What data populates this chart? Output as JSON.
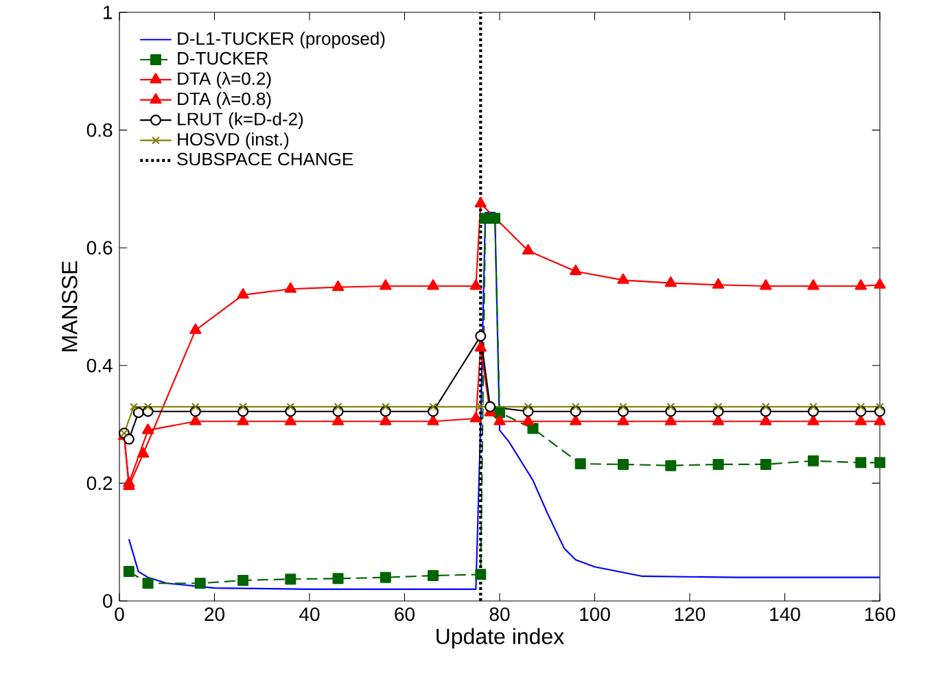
{
  "chart_data": {
    "type": "line",
    "xlabel": "Update index",
    "ylabel": "MANSSE",
    "xlim": [
      0,
      160
    ],
    "ylim": [
      0,
      1
    ],
    "xticks": [
      0,
      20,
      40,
      60,
      80,
      100,
      120,
      140,
      160
    ],
    "yticks": [
      0,
      {
        "value": 0.2,
        "label": "0.2"
      },
      {
        "value": 0.4,
        "label": "0.4"
      },
      {
        "value": 0.6,
        "label": "0.6"
      },
      {
        "value": 0.8,
        "label": "0.8"
      },
      1
    ],
    "legend": "top left",
    "grid": false,
    "series": [
      {
        "name": "D-L1-TUCKER (proposed)",
        "color": "#0000ff",
        "marker": "none",
        "line_style": "solid",
        "x": [
          2,
          4,
          6,
          10,
          20,
          40,
          60,
          75,
          76,
          77,
          79,
          80,
          82,
          87,
          90,
          93.6,
          96,
          100,
          110,
          130,
          160
        ],
        "values": [
          0.105,
          0.05,
          0.04,
          0.03,
          0.022,
          0.02,
          0.02,
          0.02,
          0.3,
          0.66,
          0.66,
          0.29,
          0.27,
          0.205,
          0.15,
          0.089,
          0.07,
          0.058,
          0.042,
          0.04,
          0.04
        ]
      },
      {
        "name": "D-TUCKER",
        "color": "#006400",
        "marker": "square",
        "line_style": "dashed",
        "x": [
          2,
          6,
          17,
          26,
          36,
          46,
          56,
          66,
          76,
          77,
          79,
          80,
          87,
          97,
          106,
          116,
          126,
          136,
          146,
          156,
          160
        ],
        "values": [
          0.05,
          0.03,
          0.03,
          0.035,
          0.037,
          0.038,
          0.04,
          0.043,
          0.045,
          0.65,
          0.65,
          0.32,
          0.293,
          0.233,
          0.232,
          0.23,
          0.232,
          0.232,
          0.238,
          0.235,
          0.235
        ]
      },
      {
        "name": "DTA (λ=0.2)",
        "color": "#ff0000",
        "marker": "triangle",
        "line_style": "solid",
        "x": [
          1,
          2,
          6,
          16,
          26,
          36,
          46,
          56,
          66,
          75,
          76,
          78,
          80,
          86,
          96,
          106,
          116,
          126,
          136,
          146,
          156,
          160
        ],
        "values": [
          0.28,
          0.2,
          0.29,
          0.305,
          0.305,
          0.305,
          0.305,
          0.305,
          0.305,
          0.31,
          0.43,
          0.32,
          0.305,
          0.305,
          0.305,
          0.305,
          0.305,
          0.305,
          0.305,
          0.305,
          0.305,
          0.305
        ]
      },
      {
        "name": "DTA (λ=0.8)",
        "color": "#ff0000",
        "marker": "triangle",
        "line_style": "solid",
        "x": [
          1,
          2,
          5,
          16,
          26,
          36,
          46,
          56,
          66,
          75,
          76,
          86,
          96,
          106,
          116,
          126,
          136,
          146,
          156,
          160
        ],
        "values": [
          0.28,
          0.195,
          0.25,
          0.46,
          0.52,
          0.53,
          0.533,
          0.535,
          0.535,
          0.535,
          0.675,
          0.595,
          0.56,
          0.545,
          0.54,
          0.537,
          0.535,
          0.535,
          0.535,
          0.537
        ]
      },
      {
        "name": "LRUT (k=D-d-2)",
        "color": "#000000",
        "marker": "circle",
        "line_style": "solid",
        "x": [
          1,
          2,
          4,
          6,
          16,
          26,
          36,
          46,
          56,
          66,
          76,
          78,
          86,
          96,
          106,
          116,
          126,
          136,
          146,
          156,
          160
        ],
        "values": [
          0.285,
          0.275,
          0.32,
          0.322,
          0.322,
          0.322,
          0.322,
          0.322,
          0.322,
          0.322,
          0.45,
          0.33,
          0.322,
          0.322,
          0.322,
          0.322,
          0.322,
          0.322,
          0.322,
          0.322,
          0.322
        ]
      },
      {
        "name": "HOSVD (inst.)",
        "color": "#808000",
        "marker": "cross",
        "line_style": "solid",
        "x": [
          1,
          3,
          6,
          16,
          26,
          36,
          46,
          56,
          66,
          76,
          86,
          96,
          106,
          116,
          126,
          136,
          146,
          156,
          160
        ],
        "values": [
          0.285,
          0.33,
          0.33,
          0.33,
          0.33,
          0.33,
          0.33,
          0.33,
          0.33,
          0.33,
          0.33,
          0.33,
          0.33,
          0.33,
          0.33,
          0.33,
          0.33,
          0.33,
          0.33
        ]
      },
      {
        "name": "SUBSPACE CHANGE",
        "color": "#000000",
        "marker": "none",
        "line_style": "dotted",
        "x": [
          76,
          76
        ],
        "values": [
          0,
          1
        ]
      }
    ]
  }
}
